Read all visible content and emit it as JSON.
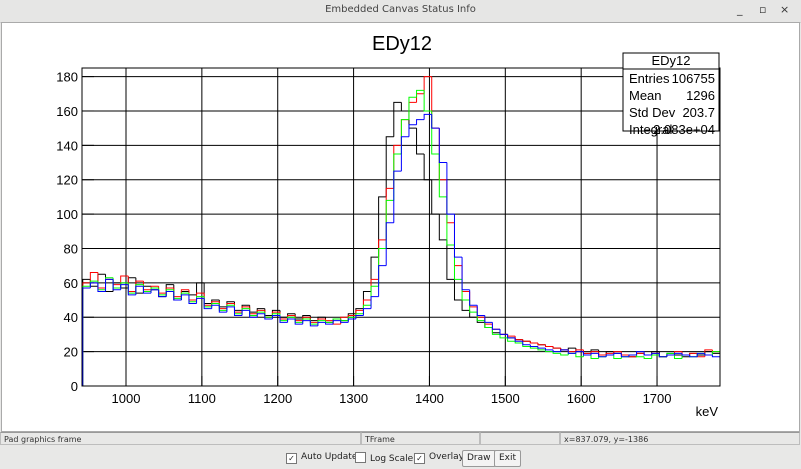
{
  "window": {
    "title": "Embedded Canvas Status Info"
  },
  "chart_data": {
    "type": "histogram",
    "title": "EDy12",
    "x_label": "keV",
    "bins": [
      943,
      953,
      963,
      973,
      983,
      993,
      1003,
      1013,
      1023,
      1033,
      1043,
      1053,
      1063,
      1073,
      1083,
      1093,
      1103,
      1113,
      1123,
      1133,
      1143,
      1153,
      1163,
      1173,
      1183,
      1193,
      1203,
      1213,
      1223,
      1233,
      1243,
      1253,
      1263,
      1273,
      1283,
      1293,
      1303,
      1313,
      1323,
      1333,
      1343,
      1353,
      1363,
      1373,
      1383,
      1393,
      1403,
      1413,
      1423,
      1433,
      1443,
      1453,
      1463,
      1473,
      1483,
      1493,
      1503,
      1513,
      1523,
      1533,
      1543,
      1553,
      1563,
      1573,
      1583,
      1593,
      1603,
      1613,
      1623,
      1633,
      1643,
      1653,
      1663,
      1673,
      1683,
      1693,
      1703,
      1713,
      1723,
      1733,
      1743,
      1753,
      1763,
      1773,
      1783
    ],
    "series": [
      {
        "color": "#000000",
        "values": [
          62,
          58,
          65,
          55,
          60,
          57,
          63,
          54,
          58,
          56,
          52,
          59,
          50,
          55,
          53,
          60,
          48,
          50,
          46,
          49,
          44,
          47,
          43,
          45,
          41,
          44,
          40,
          42,
          39,
          41,
          38,
          40,
          37,
          39,
          38,
          42,
          45,
          55,
          75,
          110,
          145,
          165,
          160,
          150,
          135,
          120,
          100,
          85,
          62,
          50,
          44,
          40,
          37,
          34,
          31,
          30,
          28,
          27,
          26,
          25,
          24,
          23,
          22,
          21,
          22,
          20,
          19,
          21,
          18,
          20,
          19,
          18,
          17,
          19,
          18,
          20,
          17,
          19,
          18,
          17,
          19,
          18,
          20,
          19
        ]
      },
      {
        "color": "#ff0000",
        "values": [
          60,
          66,
          57,
          62,
          59,
          64,
          55,
          61,
          56,
          58,
          54,
          57,
          52,
          56,
          50,
          54,
          47,
          49,
          45,
          48,
          43,
          46,
          42,
          44,
          40,
          43,
          39,
          41,
          38,
          40,
          37,
          39,
          38,
          36,
          40,
          41,
          44,
          50,
          62,
          85,
          115,
          140,
          155,
          165,
          170,
          180,
          150,
          120,
          95,
          70,
          55,
          46,
          40,
          36,
          33,
          30,
          29,
          27,
          26,
          25,
          24,
          23,
          22,
          21,
          20,
          21,
          19,
          20,
          18,
          19,
          20,
          18,
          17,
          19,
          18,
          19,
          17,
          18,
          20,
          18,
          19,
          17,
          21,
          20
        ]
      },
      {
        "color": "#00ff00",
        "values": [
          58,
          61,
          56,
          63,
          57,
          60,
          54,
          59,
          55,
          57,
          53,
          56,
          51,
          54,
          49,
          52,
          46,
          48,
          44,
          47,
          42,
          45,
          41,
          43,
          40,
          42,
          38,
          40,
          37,
          39,
          36,
          38,
          37,
          39,
          38,
          40,
          42,
          47,
          58,
          80,
          108,
          135,
          155,
          168,
          172,
          160,
          135,
          110,
          82,
          62,
          50,
          43,
          38,
          34,
          30,
          28,
          26,
          25,
          23,
          22,
          21,
          20,
          19,
          18,
          19,
          17,
          18,
          16,
          17,
          18,
          16,
          17,
          18,
          17,
          16,
          18,
          17,
          19,
          16,
          18,
          17,
          19,
          18,
          20
        ]
      },
      {
        "color": "#0000ff",
        "values": [
          57,
          60,
          55,
          62,
          56,
          59,
          53,
          58,
          54,
          56,
          52,
          55,
          50,
          53,
          48,
          51,
          45,
          47,
          43,
          46,
          41,
          44,
          40,
          42,
          39,
          41,
          37,
          39,
          36,
          38,
          35,
          37,
          36,
          38,
          37,
          39,
          41,
          45,
          52,
          70,
          95,
          125,
          145,
          152,
          155,
          158,
          150,
          130,
          100,
          75,
          56,
          47,
          41,
          37,
          33,
          30,
          28,
          26,
          24,
          23,
          22,
          21,
          20,
          21,
          19,
          20,
          18,
          19,
          17,
          18,
          19,
          17,
          18,
          20,
          18,
          19,
          17,
          18,
          19,
          18,
          17,
          19,
          18,
          17
        ]
      }
    ],
    "xlim": [
      942,
      1783
    ],
    "ylim": [
      0,
      185
    ],
    "xticks": [
      1000,
      1100,
      1200,
      1300,
      1400,
      1500,
      1600,
      1700
    ],
    "yticks": [
      0,
      20,
      40,
      60,
      80,
      100,
      120,
      140,
      160,
      180
    ],
    "grid": true,
    "stats": {
      "title": "EDy12",
      "rows": [
        [
          "Entries",
          "106755"
        ],
        [
          "Mean",
          "1296"
        ],
        [
          "Std Dev",
          "203.7"
        ],
        [
          "Integral",
          "2.083e+04"
        ]
      ]
    }
  },
  "status_bar": [
    "Pad graphics frame",
    "TFrame",
    "",
    "x=837.079, y=-1386"
  ],
  "controls": [
    {
      "label": "Auto Update",
      "checked": true
    },
    {
      "label": "Log Scale",
      "checked": false
    },
    {
      "label": "Overlay",
      "checked": true
    }
  ],
  "buttons": [
    "Draw",
    "Exit"
  ]
}
